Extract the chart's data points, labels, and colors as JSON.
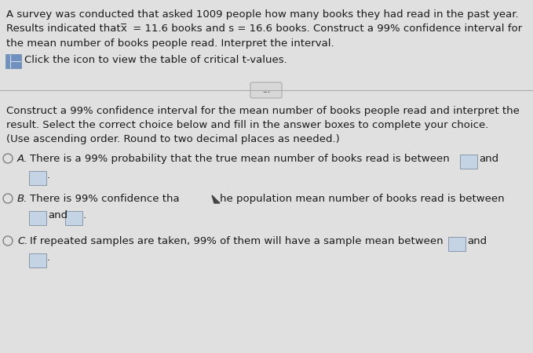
{
  "bg_color": "#e0e0e0",
  "divider_color": "#aaaaaa",
  "text_color": "#1a1a1a",
  "box_fill": "#c4d4e4",
  "box_edge": "#8899aa",
  "radio_edge": "#777777",
  "icon_fill": "#7090c0",
  "btn_fill": "#d8d8d8",
  "btn_edge": "#aaaaaa",
  "line1": "A survey was conducted that asked 1009 people how many books they had read in the past year.",
  "line2a": "Results indicated that ",
  "line2b": "x̅",
  "line2c": " = 11.6 books and s = 16.6 books. Construct a 99% confidence interval for",
  "line3": "the mean number of books people read. Interpret the interval.",
  "icon_text": "Click the icon to view the table of critical t-values.",
  "body1": "Construct a 99% confidence interval for the mean number of books people read and interpret the",
  "body2": "result. Select the correct choice below and fill in the answer boxes to complete your choice.",
  "body3": "(Use ascending order. Round to two decimal places as needed.)",
  "optA_text": "There is a 99% probability that the true mean number of books read is between",
  "optA_and": "and",
  "optB_text1": "There is 99% confidence tha",
  "optB_text2": "he population mean number of books read is between",
  "optB_and": "and",
  "optC_text": "If repeated samples are taken, 99% of them will have a sample mean between",
  "optC_and": "and",
  "fs": 9.5,
  "fs_label": 9.5
}
